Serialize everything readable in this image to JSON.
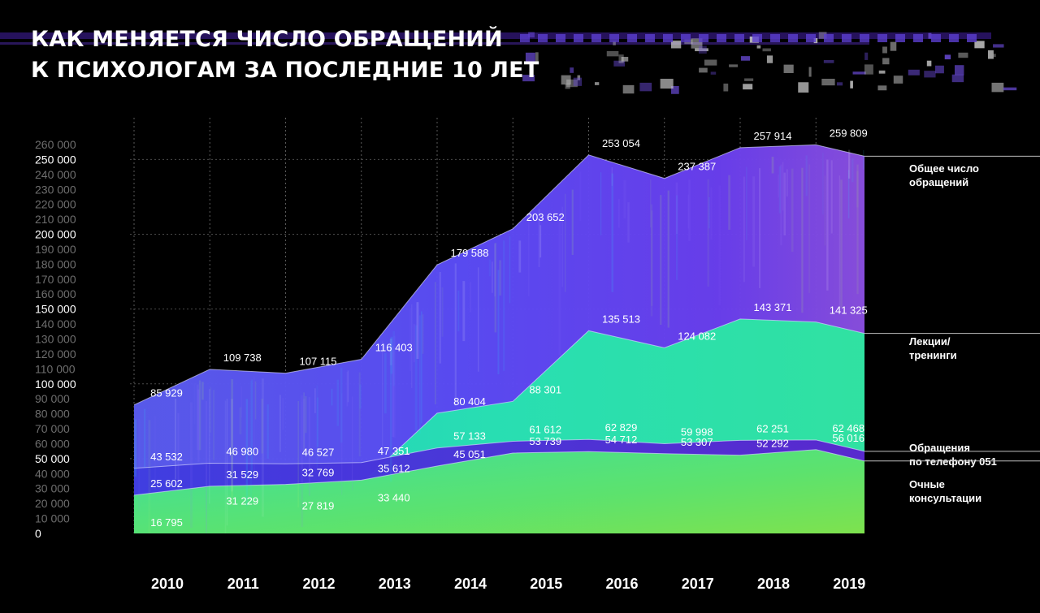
{
  "title": {
    "line1": "КАК МЕНЯЕТСЯ ЧИСЛО ОБРАЩЕНИЙ",
    "line2": "К ПСИХОЛОГАМ ЗА ПОСЛЕДНИЕ 10 ЛЕТ"
  },
  "chart_data": {
    "type": "area",
    "x": [
      "2010",
      "2011",
      "2012",
      "2013",
      "2014",
      "2015",
      "2016",
      "2017",
      "2018",
      "2019"
    ],
    "ylim": [
      0,
      260000
    ],
    "y_ticks": [
      0,
      10000,
      20000,
      30000,
      40000,
      50000,
      60000,
      70000,
      80000,
      90000,
      100000,
      110000,
      120000,
      130000,
      140000,
      150000,
      160000,
      170000,
      180000,
      190000,
      200000,
      210000,
      220000,
      230000,
      240000,
      250000,
      260000
    ],
    "y_tick_labels": [
      "0",
      "10 000",
      "20 000",
      "30 000",
      "40 000",
      "50 000",
      "60 000",
      "70 000",
      "80 000",
      "90 000",
      "100 000",
      "110 000",
      "120 000",
      "130 000",
      "140 000",
      "150 000",
      "160 000",
      "170 000",
      "180 000",
      "190 000",
      "200 000",
      "210 000",
      "220 000",
      "230 000",
      "240 000",
      "250 000",
      "260 000"
    ],
    "y_major_ticks": [
      0,
      50000,
      100000,
      150000,
      200000,
      250000
    ],
    "grid": true,
    "legend_placement": "right",
    "series": [
      {
        "name": "Общее число обращений",
        "legend_lines": [
          "Общее число",
          "обращений"
        ],
        "color": "#6a4cf5",
        "values": [
          85929,
          109738,
          107115,
          116403,
          179588,
          203652,
          253054,
          237387,
          257914,
          259809
        ],
        "labels": [
          "85 929",
          "109 738",
          "107 115",
          "116 403",
          "179 588",
          "203 652",
          "253 054",
          "237 387",
          "257 914",
          "259 809"
        ]
      },
      {
        "name": "Лекции/ тренинги",
        "legend_lines": [
          "Лекции/",
          "тренинги"
        ],
        "color": "#2ee6a8",
        "values": [
          16795,
          31229,
          27819,
          33440,
          80404,
          88301,
          135513,
          124082,
          143371,
          141325
        ],
        "labels": [
          "16 795",
          "31 229",
          "27 819",
          "33 440",
          "80 404",
          "88 301",
          "135 513",
          "124 082",
          "143 371",
          "141 325"
        ]
      },
      {
        "name": "Обращения по телефону 051",
        "legend_lines": [
          "Обращения",
          "по телефону 051"
        ],
        "color": "#5a2bd6",
        "values": [
          43532,
          46980,
          46527,
          47351,
          57133,
          61612,
          62829,
          59998,
          62251,
          62468
        ],
        "labels": [
          "43 532",
          "46 980",
          "46 527",
          "47 351",
          "57 133",
          "61 612",
          "62 829",
          "59 998",
          "62 251",
          "62 468"
        ]
      },
      {
        "name": "Очные консультации",
        "legend_lines": [
          "Очные",
          "консультации"
        ],
        "color": "#4ee86a",
        "values": [
          25602,
          31529,
          32769,
          35612,
          45051,
          53739,
          54712,
          53307,
          52292,
          56016
        ],
        "labels": [
          "25 602",
          "31 529",
          "32 769",
          "35 612",
          "45 051",
          "53 739",
          "54 712",
          "53 307",
          "52 292",
          "56 016"
        ]
      }
    ]
  }
}
